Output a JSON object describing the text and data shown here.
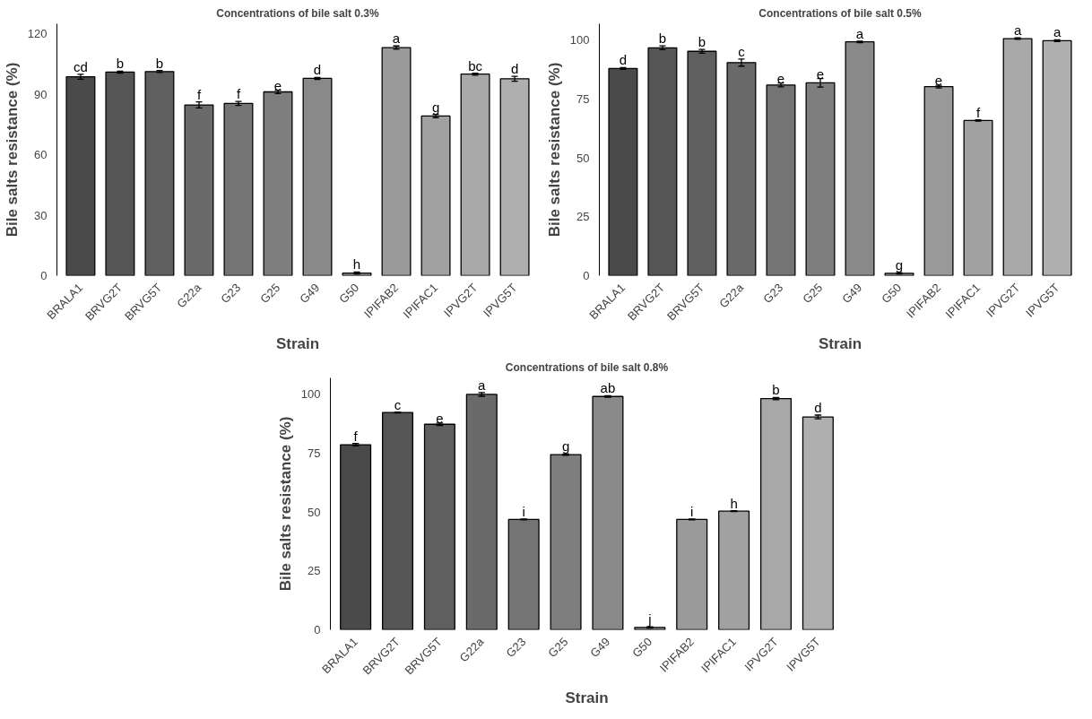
{
  "chart_data": [
    {
      "type": "bar",
      "title": "Concentrations of bile salt 0.3%",
      "xlabel": "Strain",
      "ylabel": "Bile salts resistance (%)",
      "categories": [
        "BRALA1",
        "BRVG2T",
        "BRVG5T",
        "G22a",
        "G23",
        "G25",
        "G49",
        "G50",
        "IPIFAB2",
        "IPIFAC1",
        "IPVG2T",
        "IPVG5T"
      ],
      "values": [
        98.7,
        101,
        101.3,
        84.7,
        85.5,
        91.2,
        97.9,
        1.3,
        113.2,
        79.2,
        100,
        97.7
      ],
      "errors": [
        1.2,
        0.5,
        0.5,
        1.5,
        1,
        0.8,
        0.5,
        0.5,
        0.8,
        0.8,
        0.5,
        1.2
      ],
      "value_labels": [
        "cd",
        "b",
        "b",
        "f",
        "f",
        "e",
        "d",
        "h",
        "a",
        "g",
        "bc",
        "d"
      ],
      "colors": [
        "#4a4a4a",
        "#555555",
        "#5f5f5f",
        "#6a6a6a",
        "#747474",
        "#7e7e7e",
        "#898989",
        "#939393",
        "#9a9a9a",
        "#a1a1a1",
        "#a8a8a8",
        "#afafaf"
      ],
      "ylim": [
        0,
        125
      ],
      "yticks": [
        0,
        30,
        60,
        90,
        120
      ],
      "grid": false
    },
    {
      "type": "bar",
      "title": "Concentrations of bile salt 0.5%",
      "xlabel": "Strain",
      "ylabel": "Bile salts resistance (%)",
      "categories": [
        "BRALA1",
        "BRVG2T",
        "BRVG5T",
        "G22a",
        "G23",
        "G25",
        "G49",
        "G50",
        "IPIFAB2",
        "IPIFAC1",
        "IPVG2T",
        "IPVG5T"
      ],
      "values": [
        88,
        96.8,
        95.3,
        90.5,
        81,
        81.9,
        99.3,
        1,
        80.3,
        65.9,
        100.7,
        99.8
      ],
      "errors": [
        0.4,
        0.8,
        0.8,
        1.5,
        0.8,
        1.8,
        0.3,
        0.3,
        0.6,
        0.3,
        0.3,
        0.4
      ],
      "value_labels": [
        "d",
        "b",
        "b",
        "c",
        "e",
        "e",
        "a",
        "g",
        "e",
        "f",
        "a",
        "a"
      ],
      "colors": [
        "#4a4a4a",
        "#555555",
        "#5f5f5f",
        "#6a6a6a",
        "#747474",
        "#7e7e7e",
        "#898989",
        "#939393",
        "#9a9a9a",
        "#a1a1a1",
        "#a8a8a8",
        "#afafaf"
      ],
      "ylim": [
        0,
        107
      ],
      "yticks": [
        0,
        25,
        50,
        75,
        100
      ],
      "grid": false
    },
    {
      "type": "bar",
      "title": "Concentrations of bile salt 0.8%",
      "xlabel": "Strain",
      "ylabel": "Bile salts resistance (%)",
      "categories": [
        "BRALA1",
        "BRVG2T",
        "BRVG5T",
        "G22a",
        "G23",
        "G25",
        "G49",
        "G50",
        "IPIFAB2",
        "IPIFAC1",
        "IPVG2T",
        "IPVG5T"
      ],
      "values": [
        78.6,
        92.3,
        87.3,
        100,
        46.9,
        74.4,
        99.1,
        1,
        46.9,
        50.4,
        98.2,
        90.4
      ],
      "errors": [
        0.5,
        0.2,
        0.5,
        0.8,
        0.2,
        0.3,
        0.3,
        0.3,
        0.2,
        0.2,
        0.5,
        0.8
      ],
      "value_labels": [
        "f",
        "c",
        "e",
        "a",
        "i",
        "g",
        "ab",
        "j",
        "i",
        "h",
        "b",
        "d"
      ],
      "colors": [
        "#4a4a4a",
        "#555555",
        "#5f5f5f",
        "#6a6a6a",
        "#747474",
        "#7e7e7e",
        "#898989",
        "#939393",
        "#9a9a9a",
        "#a1a1a1",
        "#a8a8a8",
        "#afafaf"
      ],
      "ylim": [
        0,
        107
      ],
      "yticks": [
        0,
        25,
        50,
        75,
        100
      ],
      "grid": false
    }
  ]
}
